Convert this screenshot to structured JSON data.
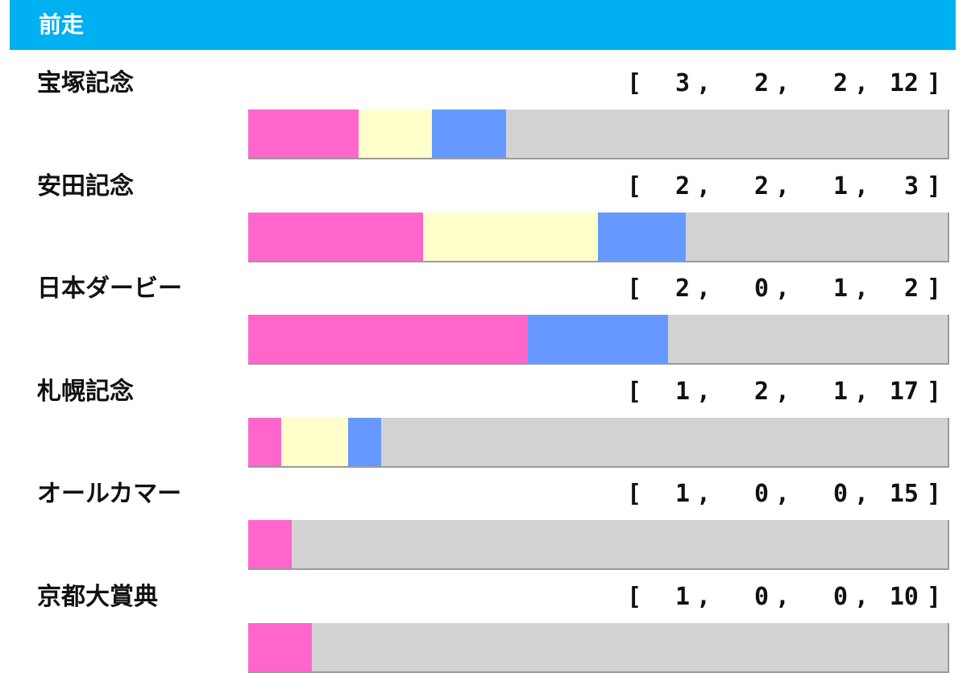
{
  "header": {
    "title": "前走"
  },
  "colors": {
    "header": "#00b0f0",
    "first": "#ff66cc",
    "second": "#ffffcc",
    "third": "#6699ff",
    "other": "#d3d3d3"
  },
  "chart_data": {
    "type": "bar",
    "stacked": true,
    "orientation": "horizontal",
    "title": "前走",
    "categories": [
      "宝塚記念",
      "安田記念",
      "日本ダービー",
      "札幌記念",
      "オールカマー",
      "京都大賞典"
    ],
    "series": [
      {
        "values": [
          3,
          2,
          2,
          1,
          1,
          1
        ],
        "color": "#ff66cc"
      },
      {
        "values": [
          2,
          2,
          0,
          2,
          0,
          0
        ],
        "color": "#ffffcc"
      },
      {
        "values": [
          2,
          1,
          1,
          1,
          0,
          0
        ],
        "color": "#6699ff"
      },
      {
        "values": [
          12,
          3,
          2,
          17,
          15,
          10
        ],
        "color": "#d3d3d3"
      }
    ]
  },
  "rows": [
    {
      "name": "宝塚記念",
      "open": "[",
      "close": "]",
      "comma": ",",
      "w1": "3",
      "w2": "2",
      "w3": "2",
      "other": "12"
    },
    {
      "name": "安田記念",
      "open": "[",
      "close": "]",
      "comma": ",",
      "w1": "2",
      "w2": "2",
      "w3": "1",
      "other": "3"
    },
    {
      "name": "日本ダービー",
      "open": "[",
      "close": "]",
      "comma": ",",
      "w1": "2",
      "w2": "0",
      "w3": "1",
      "other": "2"
    },
    {
      "name": "札幌記念",
      "open": "[",
      "close": "]",
      "comma": ",",
      "w1": "1",
      "w2": "2",
      "w3": "1",
      "other": "17"
    },
    {
      "name": "オールカマー",
      "open": "[",
      "close": "]",
      "comma": ",",
      "w1": "1",
      "w2": "0",
      "w3": "0",
      "other": "15"
    },
    {
      "name": "京都大賞典",
      "open": "[",
      "close": "]",
      "comma": ",",
      "w1": "1",
      "w2": "0",
      "w3": "0",
      "other": "10"
    }
  ]
}
